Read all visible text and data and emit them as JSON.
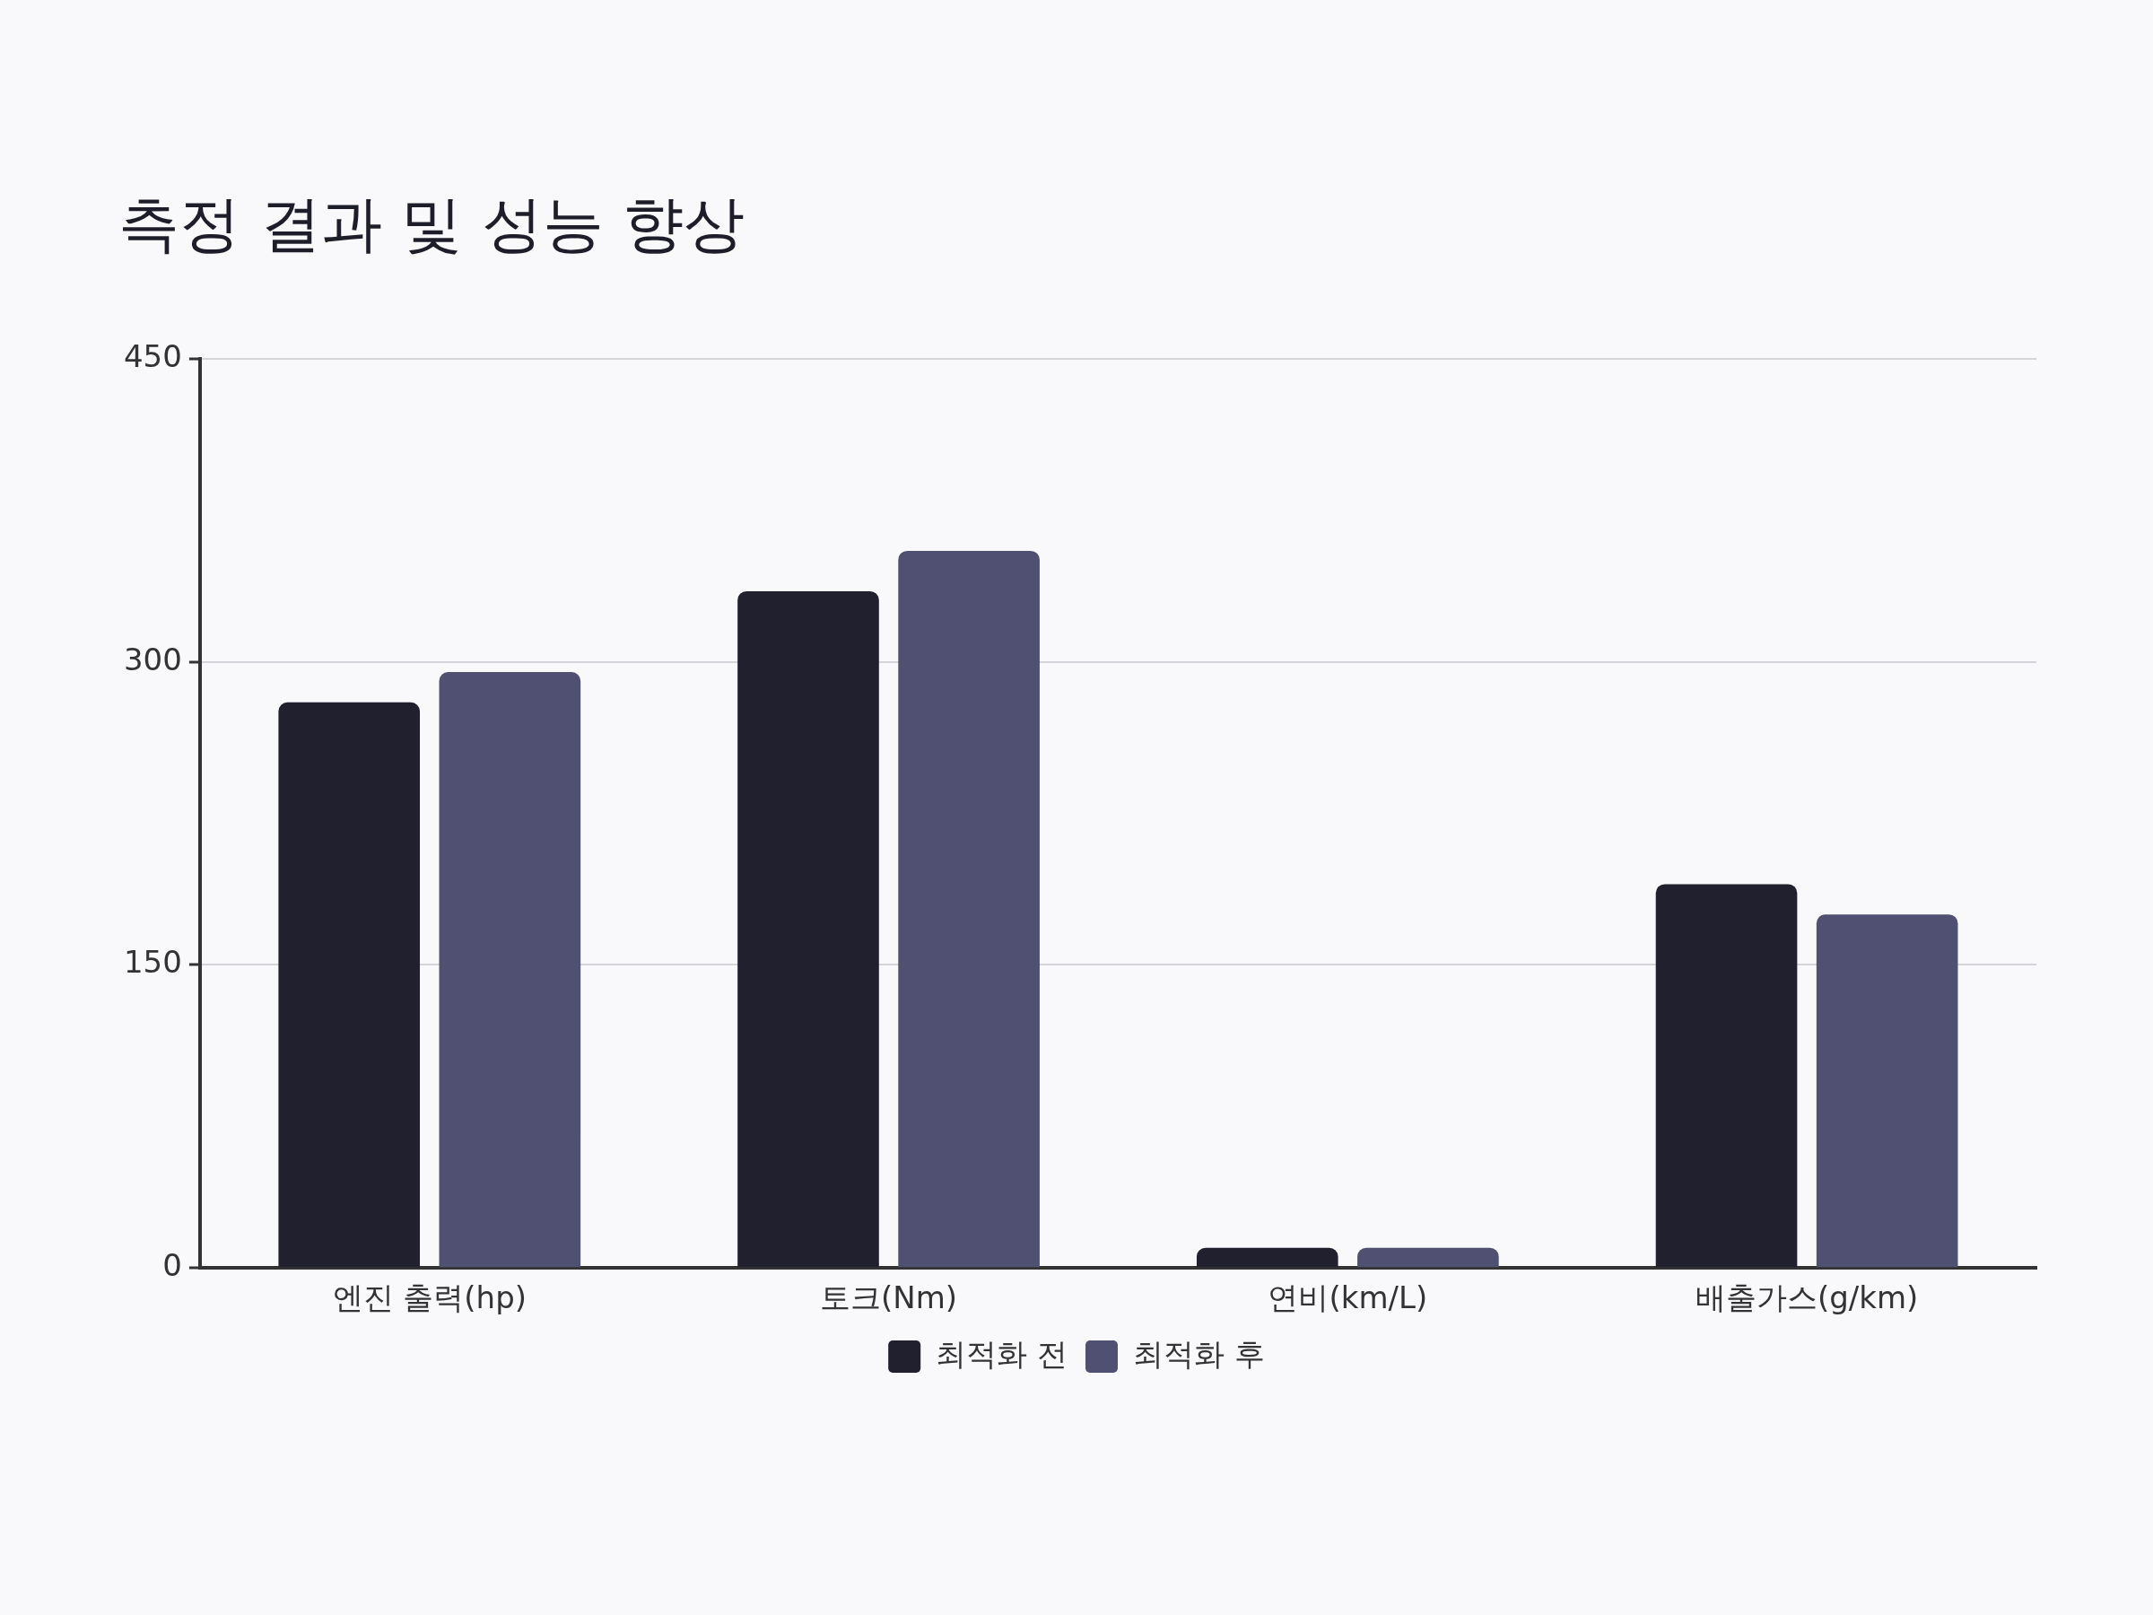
{
  "chart_data": {
    "type": "bar",
    "title": "측정 결과 및 성능 향상",
    "categories": [
      "엔진 출력(hp)",
      "토크(Nm)",
      "연비(km/L)",
      "배출가스(g/km)"
    ],
    "series": [
      {
        "name": "최적화 전",
        "color": "#20202e",
        "values": [
          280,
          335,
          10,
          190
        ]
      },
      {
        "name": "최적화 후",
        "color": "#4f5072",
        "values": [
          295,
          355,
          10,
          175
        ]
      }
    ],
    "ylim": [
      0,
      450
    ],
    "yticks": [
      0,
      150,
      300,
      450
    ],
    "grid": "y",
    "legend": "bottom"
  }
}
